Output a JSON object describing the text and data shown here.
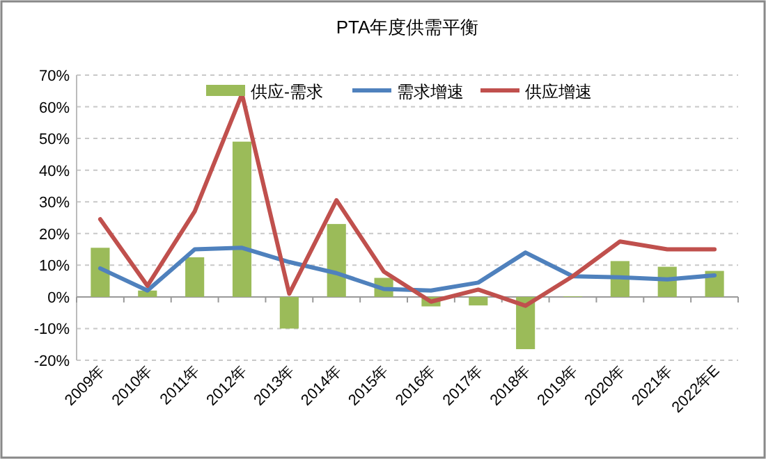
{
  "chart_data": {
    "type": "bar",
    "title": "PTA年度供需平衡",
    "categories": [
      "2009年",
      "2010年",
      "2011年",
      "2012年",
      "2013年",
      "2014年",
      "2015年",
      "2016年",
      "2017年",
      "2018年",
      "2019年",
      "2020年",
      "2021年",
      "2022年E"
    ],
    "series": [
      {
        "name": "供应-需求",
        "color": "#9bbb59",
        "values": [
          15.5,
          2,
          12.5,
          49,
          -10,
          23,
          6,
          -3,
          -2.7,
          -16.5,
          0.2,
          11.3,
          9.5,
          8.2
        ]
      },
      {
        "name": "需求增速",
        "type": "line",
        "color": "#4f81bd",
        "values": [
          9,
          2,
          15,
          15.5,
          11,
          7.5,
          2.5,
          2,
          4.5,
          14,
          6.5,
          6.2,
          5.5,
          6.8
        ]
      },
      {
        "name": "供应增速",
        "type": "line",
        "color": "#c0504d",
        "values": [
          24.5,
          3.5,
          27,
          64,
          1,
          30.5,
          8,
          -1.5,
          2.3,
          -2.8,
          6.5,
          17.5,
          15,
          15
        ]
      }
    ],
    "ylim": [
      -20,
      70
    ],
    "yticks": [
      {
        "value": -20,
        "label": "-20%"
      },
      {
        "value": -10,
        "label": "-10%"
      },
      {
        "value": 0,
        "label": "0%"
      },
      {
        "value": 10,
        "label": "10%"
      },
      {
        "value": 20,
        "label": "20%"
      },
      {
        "value": 30,
        "label": "30%"
      },
      {
        "value": 40,
        "label": "40%"
      },
      {
        "value": 50,
        "label": "50%"
      },
      {
        "value": 60,
        "label": "60%"
      },
      {
        "value": 70,
        "label": "70%"
      }
    ],
    "grid": "y",
    "legend": "top",
    "line_style": "solid",
    "marker": "none"
  }
}
